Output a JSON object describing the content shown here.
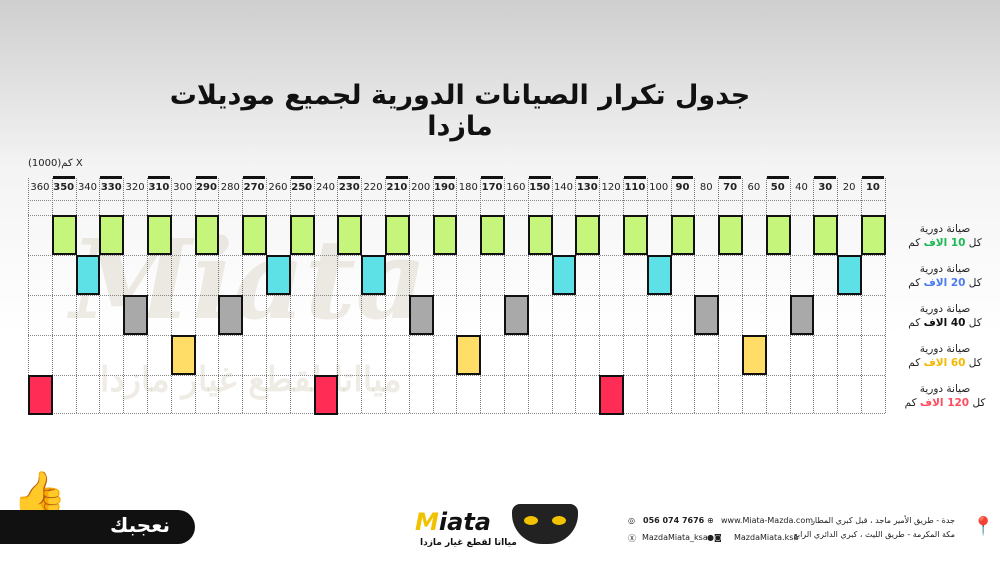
{
  "title": "جدول تكرار الصيانات الدورية لجميع موديلات مازدا",
  "unit_label": "كم(1000)  X",
  "watermark": {
    "brand": "Miata",
    "tagline": "ميااتا لقطع غيار مازدا"
  },
  "columns": [
    360,
    350,
    340,
    330,
    320,
    310,
    300,
    290,
    280,
    270,
    260,
    250,
    240,
    230,
    220,
    210,
    200,
    190,
    180,
    170,
    160,
    150,
    140,
    130,
    120,
    110,
    100,
    90,
    80,
    70,
    60,
    50,
    40,
    30,
    20,
    10
  ],
  "bold_columns": [
    350,
    330,
    310,
    290,
    270,
    250,
    230,
    210,
    190,
    170,
    150,
    130,
    110,
    90,
    70,
    50,
    30,
    10
  ],
  "rows": [
    {
      "line1": "صيانة دورية",
      "pre": "كل ",
      "num": "10",
      "mid": " الاف",
      "post": " كم",
      "color": "#1db954",
      "fill": "#c5f57a",
      "marks": [
        350,
        330,
        310,
        290,
        270,
        250,
        230,
        210,
        190,
        170,
        150,
        130,
        110,
        90,
        70,
        50,
        30,
        10
      ]
    },
    {
      "line1": "صيانة دورية",
      "pre": "كل ",
      "num": "20",
      "mid": " الاف",
      "post": " كم",
      "color": "#4a7cf0",
      "fill": "#5de0e6",
      "marks": [
        340,
        260,
        220,
        140,
        100,
        20
      ]
    },
    {
      "line1": "صيانة دورية",
      "pre": "كل ",
      "num": "40",
      "mid": " الاف",
      "post": " كم",
      "color": "#111111",
      "fill": "#a9a9a9",
      "marks": [
        320,
        280,
        200,
        160,
        80,
        40
      ]
    },
    {
      "line1": "صيانة دورية",
      "pre": "كل ",
      "num": "60",
      "mid": " الاف",
      "post": " كم",
      "color": "#f5b800",
      "fill": "#ffdd66",
      "marks": [
        300,
        180,
        60
      ]
    },
    {
      "line1": "صيانة دورية",
      "pre": "كل ",
      "num": "120",
      "mid": " الاف",
      "post": " كم",
      "color": "#ff4d5e",
      "fill": "#ff2d55",
      "marks": [
        360,
        240,
        120
      ]
    }
  ],
  "footer": {
    "like_label": "نعجبك",
    "logo": "Miata",
    "logo_tagline": "ميااتا لقطع غيار مازدا",
    "phone": "056 074 7676",
    "website": "www.Miata-Mazda.com",
    "x_handle": "MazdaMiata_ksa",
    "social_handle": "MazdaMiata.ksa",
    "address1": "جدة - طريق الأمير ماجد ، قبل كبري المطار",
    "address2": "مكة المكرمة - طريق الليث ، كبري الدائري الرابع"
  }
}
